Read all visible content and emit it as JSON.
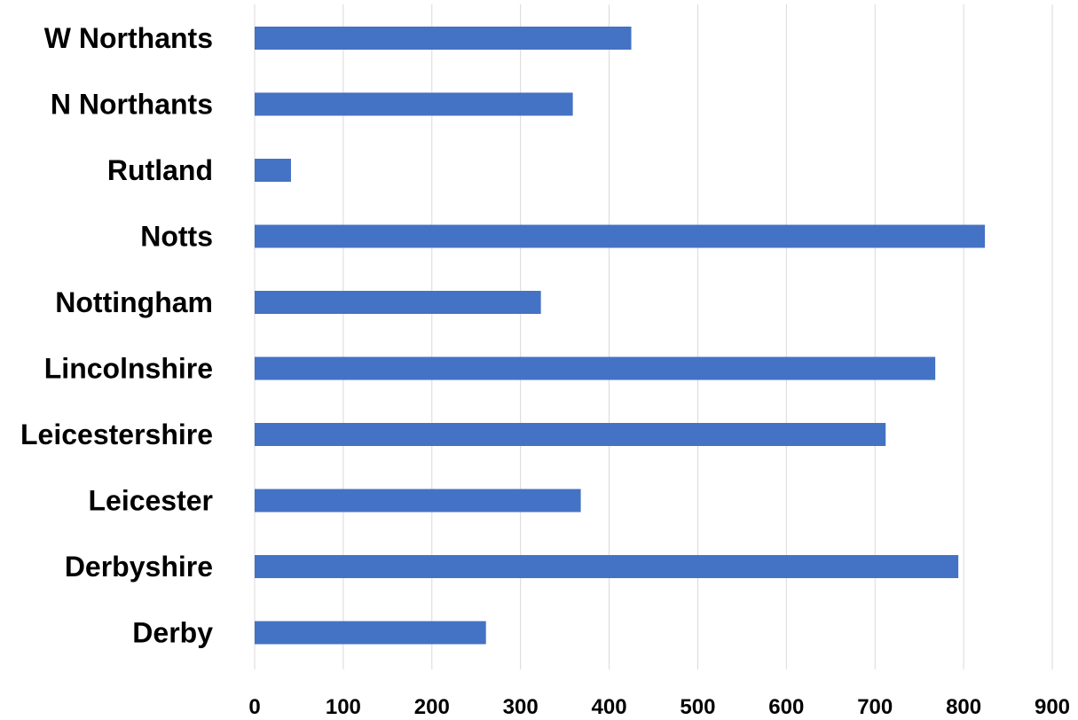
{
  "chart_data": {
    "type": "bar",
    "orientation": "horizontal",
    "categories": [
      "W Northants",
      "N Northants",
      "Rutland",
      "Notts",
      "Nottingham",
      "Lincolnshire",
      "Leicestershire",
      "Leicester",
      "Derbyshire",
      "Derby"
    ],
    "values": [
      425,
      359,
      41,
      824,
      323,
      768,
      712,
      368,
      794,
      261
    ],
    "title": "",
    "xlabel": "",
    "ylabel": "",
    "xlim": [
      0,
      900
    ],
    "xticks": [
      "0",
      "100",
      "200",
      "300",
      "400",
      "500",
      "600",
      "700",
      "800",
      "900"
    ],
    "grid": "vertical gridlines",
    "legend": "none",
    "bar_color": "#4472c4",
    "grid_color": "#d9d9d9"
  }
}
